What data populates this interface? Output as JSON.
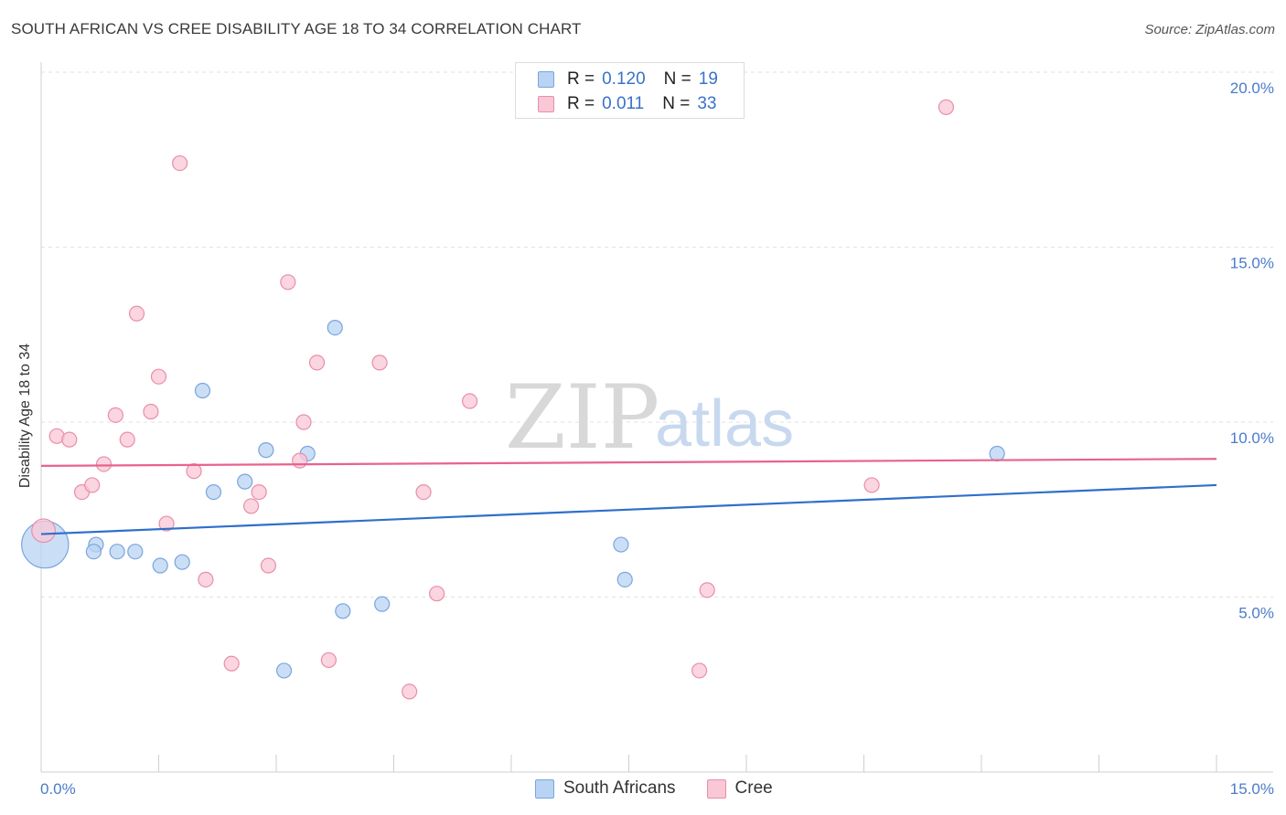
{
  "title": "SOUTH AFRICAN VS CREE DISABILITY AGE 18 TO 34 CORRELATION CHART",
  "source": "Source: ZipAtlas.com",
  "watermark": {
    "zip": "ZIP",
    "atlas": "atlas"
  },
  "legend": {
    "rows": [
      {
        "r_label": "R =",
        "r_value": "0.120",
        "n_label": "N =",
        "n_value": "19"
      },
      {
        "r_label": "R =",
        "r_value": "0.011",
        "n_label": "N =",
        "n_value": "33"
      }
    ],
    "bottom": [
      "South Africans",
      "Cree"
    ]
  },
  "colors": {
    "south_africans_fill": "#b8d3f3",
    "south_africans_stroke": "#7aa5dd",
    "south_africans_line": "#2f6fcb",
    "cree_fill": "#f9c7d6",
    "cree_stroke": "#e88ea9",
    "cree_line": "#e8638d",
    "tick_label": "#4a7cc9"
  },
  "chart_data": {
    "type": "scatter",
    "title": "SOUTH AFRICAN VS CREE DISABILITY AGE 18 TO 34 CORRELATION CHART",
    "xlabel": "",
    "ylabel": "Disability Age 18 to 34",
    "xlim": [
      0,
      15
    ],
    "ylim": [
      0,
      20.5
    ],
    "x_tick_labels": [
      "0.0%",
      "15.0%"
    ],
    "y_ticks": [
      5,
      10,
      15,
      20
    ],
    "y_tick_labels": [
      "5.0%",
      "10.0%",
      "15.0%",
      "20.0%"
    ],
    "legend_position": "top-center",
    "grid": true,
    "series": [
      {
        "name": "South Africans",
        "trend": [
          [
            0,
            6.8
          ],
          [
            15,
            8.2
          ]
        ],
        "points": [
          [
            0.05,
            6.5,
            3.2
          ],
          [
            0.7,
            6.5,
            1
          ],
          [
            0.67,
            6.3,
            1
          ],
          [
            0.97,
            6.3,
            1
          ],
          [
            1.2,
            6.3,
            1
          ],
          [
            1.52,
            5.9,
            1
          ],
          [
            1.8,
            6.0,
            1
          ],
          [
            2.06,
            10.9,
            1
          ],
          [
            2.2,
            8.0,
            1
          ],
          [
            2.6,
            8.3,
            1
          ],
          [
            2.87,
            9.2,
            1
          ],
          [
            3.1,
            2.9,
            1
          ],
          [
            3.4,
            9.1,
            1
          ],
          [
            3.75,
            12.7,
            1
          ],
          [
            3.85,
            4.6,
            1
          ],
          [
            4.35,
            4.8,
            1
          ],
          [
            7.4,
            6.5,
            1
          ],
          [
            7.45,
            5.5,
            1
          ],
          [
            12.2,
            9.1,
            1
          ]
        ]
      },
      {
        "name": "Cree",
        "trend": [
          [
            0,
            8.75
          ],
          [
            15,
            8.95
          ]
        ],
        "points": [
          [
            0.03,
            6.9,
            1.6
          ],
          [
            0.2,
            9.6,
            1
          ],
          [
            0.36,
            9.5,
            1
          ],
          [
            0.52,
            8.0,
            1
          ],
          [
            0.65,
            8.2,
            1
          ],
          [
            0.8,
            8.8,
            1
          ],
          [
            0.95,
            10.2,
            1
          ],
          [
            1.1,
            9.5,
            1
          ],
          [
            1.22,
            13.1,
            1
          ],
          [
            1.4,
            10.3,
            1
          ],
          [
            1.5,
            11.3,
            1
          ],
          [
            1.6,
            7.1,
            1
          ],
          [
            1.77,
            17.4,
            1
          ],
          [
            1.95,
            8.6,
            1
          ],
          [
            2.1,
            5.5,
            1
          ],
          [
            2.43,
            3.1,
            1
          ],
          [
            2.68,
            7.6,
            1
          ],
          [
            2.78,
            8.0,
            1
          ],
          [
            2.9,
            5.9,
            1
          ],
          [
            3.15,
            14.0,
            1
          ],
          [
            3.3,
            8.9,
            1
          ],
          [
            3.35,
            10.0,
            1
          ],
          [
            3.52,
            11.7,
            1
          ],
          [
            3.67,
            3.2,
            1
          ],
          [
            4.32,
            11.7,
            1
          ],
          [
            4.7,
            2.3,
            1
          ],
          [
            4.88,
            8.0,
            1
          ],
          [
            5.05,
            5.1,
            1
          ],
          [
            5.47,
            10.6,
            1
          ],
          [
            8.4,
            2.9,
            1
          ],
          [
            8.5,
            5.2,
            1
          ],
          [
            10.6,
            8.2,
            1
          ],
          [
            11.55,
            19.0,
            1
          ]
        ]
      }
    ]
  }
}
